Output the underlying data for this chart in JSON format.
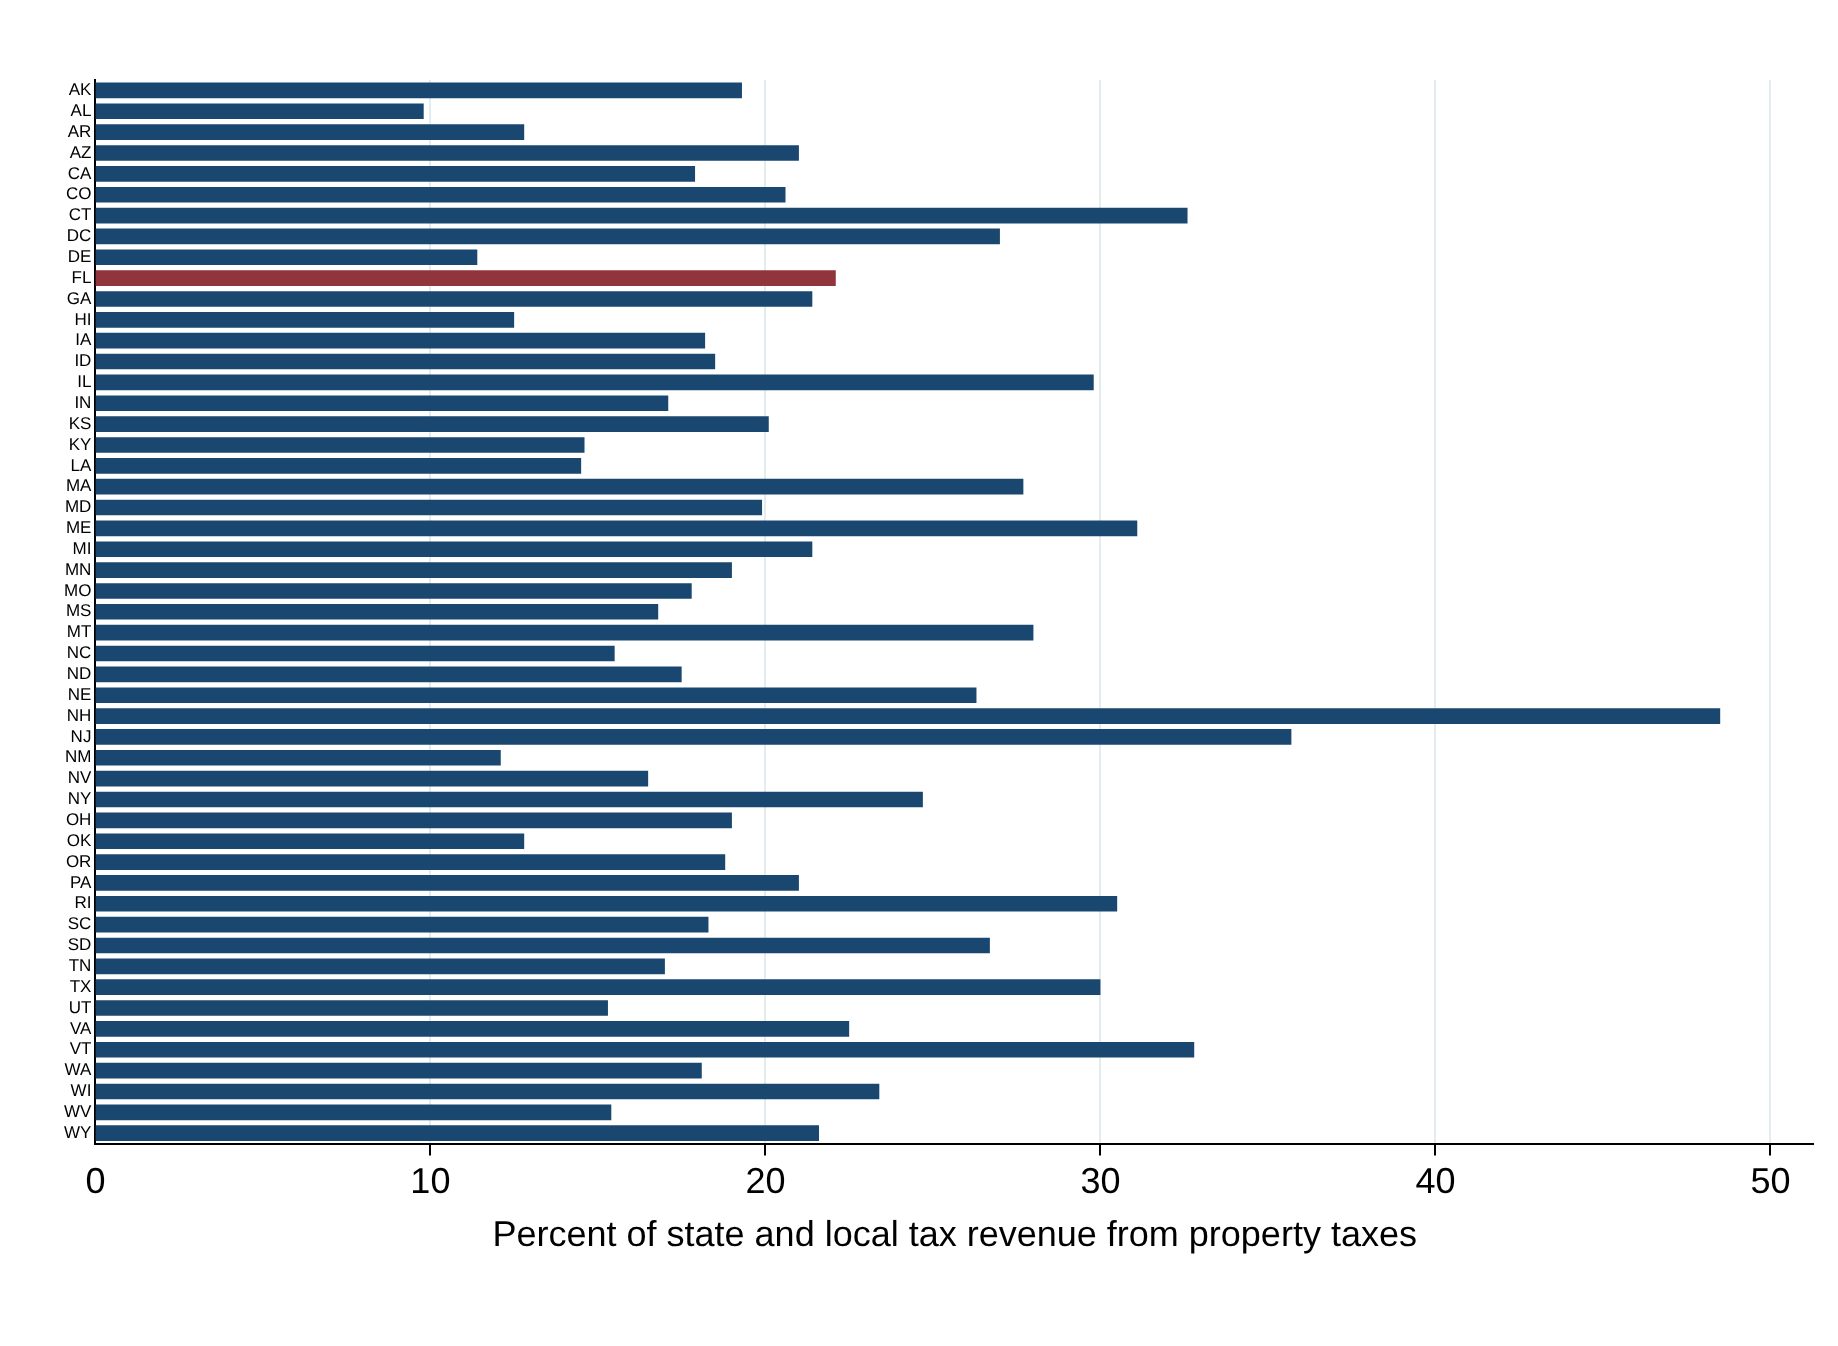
{
  "chart_data": {
    "type": "bar",
    "orientation": "horizontal",
    "xlabel": "Percent of state and local tax revenue from property taxes",
    "categories": [
      "AK",
      "AL",
      "AR",
      "AZ",
      "CA",
      "CO",
      "CT",
      "DC",
      "DE",
      "FL",
      "GA",
      "HI",
      "IA",
      "ID",
      "IL",
      "IN",
      "KS",
      "KY",
      "LA",
      "MA",
      "MD",
      "ME",
      "MI",
      "MN",
      "MO",
      "MS",
      "MT",
      "NC",
      "ND",
      "NE",
      "NH",
      "NJ",
      "NM",
      "NV",
      "NY",
      "OH",
      "OK",
      "OR",
      "PA",
      "RI",
      "SC",
      "SD",
      "TN",
      "TX",
      "UT",
      "VA",
      "VT",
      "WA",
      "WI",
      "WV",
      "WY"
    ],
    "values": [
      19.3,
      9.8,
      12.8,
      21.0,
      17.9,
      20.6,
      32.6,
      27.0,
      11.4,
      22.1,
      21.4,
      12.5,
      18.2,
      18.5,
      29.8,
      17.1,
      20.1,
      14.6,
      14.5,
      27.7,
      19.9,
      31.1,
      21.4,
      19.0,
      17.8,
      16.8,
      28.0,
      15.5,
      17.5,
      26.3,
      48.5,
      35.7,
      12.1,
      16.5,
      24.7,
      19.0,
      12.8,
      18.8,
      21.0,
      30.5,
      18.3,
      26.7,
      17.0,
      30.0,
      15.3,
      22.5,
      32.8,
      18.1,
      23.4,
      15.4,
      21.6
    ],
    "colors": [
      "#1a476f",
      "#1a476f",
      "#1a476f",
      "#1a476f",
      "#1a476f",
      "#1a476f",
      "#1a476f",
      "#1a476f",
      "#1a476f",
      "#90353b",
      "#1a476f",
      "#1a476f",
      "#1a476f",
      "#1a476f",
      "#1a476f",
      "#1a476f",
      "#1a476f",
      "#1a476f",
      "#1a476f",
      "#1a476f",
      "#1a476f",
      "#1a476f",
      "#1a476f",
      "#1a476f",
      "#1a476f",
      "#1a476f",
      "#1a476f",
      "#1a476f",
      "#1a476f",
      "#1a476f",
      "#1a476f",
      "#1a476f",
      "#1a476f",
      "#1a476f",
      "#1a476f",
      "#1a476f",
      "#1a476f",
      "#1a476f",
      "#1a476f",
      "#1a476f",
      "#1a476f",
      "#1a476f",
      "#1a476f",
      "#1a476f",
      "#1a476f",
      "#1a476f",
      "#1a476f",
      "#1a476f",
      "#1a476f",
      "#1a476f",
      "#1a476f"
    ],
    "xlim": [
      0,
      51.3
    ],
    "xticks": [
      0,
      10,
      20,
      30,
      40,
      50
    ],
    "grid": "x",
    "legend": false
  }
}
